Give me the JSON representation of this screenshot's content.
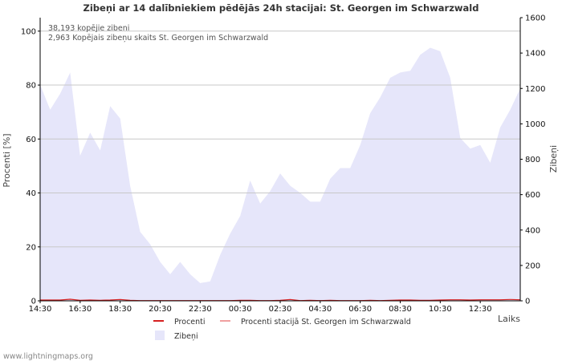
{
  "chart_data": {
    "type": "area",
    "title": "Zibeņi ar 14 dalībniekiem pēdējās 24h stacijai: St. Georgen im Schwarzwald",
    "annotations": [
      "38,193 kopējie zibeni",
      "2,963 Kopējais zibeņu skaits St. Georgen im Schwarzwald"
    ],
    "xlabel": "Laiks",
    "ylabel_left": "Procenti   [%]",
    "ylabel_right": "Zibeņi",
    "ylim_left": [
      0,
      105
    ],
    "ylim_right": [
      0,
      1600
    ],
    "yticks_left": [
      "0",
      "20",
      "40",
      "60",
      "80",
      "100"
    ],
    "yticks_right": [
      "0",
      "200",
      "400",
      "600",
      "800",
      "1000",
      "1200",
      "1400",
      "1600"
    ],
    "x_tick_labels": [
      "14:30",
      "16:30",
      "18:30",
      "20:30",
      "22:30",
      "00:30",
      "02:30",
      "04:30",
      "06:30",
      "08:30",
      "10:30",
      "12:30"
    ],
    "x_hours_from_start": [
      0,
      0.5,
      1,
      1.5,
      2,
      2.5,
      3,
      3.5,
      4,
      4.5,
      5,
      5.5,
      6,
      6.5,
      7,
      7.5,
      8,
      8.5,
      9,
      9.5,
      10,
      10.5,
      11,
      11.5,
      12,
      12.5,
      13,
      13.5,
      14,
      14.5,
      15,
      15.5,
      16,
      16.5,
      17,
      17.5,
      18,
      18.5,
      19,
      19.5,
      20,
      20.5,
      21,
      21.5,
      22,
      22.5,
      23,
      23.5,
      24
    ],
    "series": [
      {
        "name": "Zibeņi",
        "axis": "right",
        "values": [
          1220,
          1080,
          1170,
          1290,
          820,
          950,
          850,
          1100,
          1030,
          650,
          390,
          320,
          220,
          150,
          220,
          150,
          100,
          110,
          260,
          380,
          480,
          680,
          550,
          620,
          720,
          650,
          610,
          560,
          560,
          690,
          750,
          750,
          880,
          1060,
          1150,
          1260,
          1290,
          1300,
          1390,
          1430,
          1410,
          1260,
          920,
          860,
          880,
          780,
          980,
          1080,
          1200
        ]
      },
      {
        "name": "Procenti",
        "axis": "left",
        "values": [
          0.3,
          0.3,
          0.3,
          0.6,
          0.2,
          0.3,
          0.2,
          0.3,
          0.5,
          0.2,
          0.1,
          0.1,
          0.1,
          0.1,
          0.1,
          0.1,
          0.1,
          0.1,
          0.1,
          0.1,
          0.2,
          0.2,
          0.1,
          0.1,
          0.2,
          0.5,
          0.1,
          0.2,
          0.1,
          0.2,
          0.1,
          0.1,
          0.1,
          0.2,
          0.1,
          0.2,
          0.3,
          0.3,
          0.2,
          0.2,
          0.3,
          0.4,
          0.4,
          0.3,
          0.4,
          0.4,
          0.4,
          0.5,
          0.4
        ]
      },
      {
        "name": "Procenti stacijā St. Georgen im Schwarzwald",
        "axis": "left",
        "values": []
      }
    ],
    "legend": [
      {
        "label": "Procenti",
        "color": "#d62020"
      },
      {
        "label": "Procenti stacijā St. Georgen im Schwarzwald",
        "color": "#f0a0a0"
      },
      {
        "label": "Zibeņi",
        "color": "#e6e6fa"
      }
    ],
    "colors": {
      "area": "#e6e6fa",
      "grid": "#c8c8c8",
      "line": "#d62020",
      "line_station": "#f0a0a0"
    }
  },
  "footer": "www.lightningmaps.org"
}
